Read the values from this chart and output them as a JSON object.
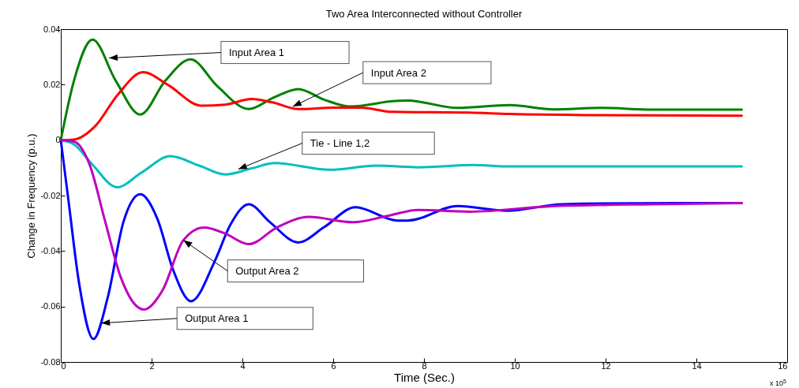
{
  "chart_data": {
    "type": "line",
    "title": "Two Area Interconnected without Controller",
    "xlabel": "Time (Sec.)",
    "ylabel": "Change in Frequency (p.u.)",
    "xlim": [
      0,
      16
    ],
    "xticks": [
      0,
      2,
      4,
      6,
      8,
      10,
      12,
      14,
      16
    ],
    "ylim": [
      -0.08,
      0.04
    ],
    "yticks": [
      -0.08,
      -0.06,
      -0.04,
      -0.02,
      0,
      0.02,
      0.04
    ],
    "grid": false,
    "legend": false,
    "marker": "none",
    "line_style": "solid",
    "series": [
      {
        "color": "#008000",
        "x": [
          0,
          0.29,
          0.7,
          1.21,
          1.75,
          2.3,
          2.86,
          3.45,
          4.14,
          4.71,
          5.23,
          5.8,
          6.38,
          7.36,
          7.64,
          8.74,
          9.89,
          10.86,
          11.9,
          13.05,
          15
        ],
        "values": [
          0,
          0.0214,
          0.0362,
          0.0214,
          0.0092,
          0.0214,
          0.0291,
          0.0194,
          0.0112,
          0.0155,
          0.0184,
          0.0146,
          0.0121,
          0.0141,
          0.0143,
          0.0116,
          0.0126,
          0.0111,
          0.0116,
          0.011,
          0.011
        ]
      },
      {
        "color": "#ff0000",
        "x": [
          0,
          0.29,
          0.75,
          1.26,
          1.81,
          2.36,
          3.1,
          3.62,
          4.2,
          4.66,
          5.23,
          6.03,
          6.61,
          7.3,
          9.0,
          9.89,
          11.9,
          15
        ],
        "values": [
          0,
          0.0002,
          0.0049,
          0.0165,
          0.0245,
          0.0199,
          0.0124,
          0.0128,
          0.0148,
          0.0136,
          0.0112,
          0.0117,
          0.0117,
          0.0102,
          0.0099,
          0.0094,
          0.009,
          0.0088
        ]
      },
      {
        "color": "#00bfbf",
        "x": [
          0,
          0.29,
          0.69,
          1.24,
          1.78,
          2.41,
          3.05,
          3.62,
          4.2,
          4.71,
          5.92,
          6.95,
          7.87,
          9.1,
          9.89,
          15
        ],
        "values": [
          0,
          -0.0015,
          -0.0087,
          -0.017,
          -0.0117,
          -0.0058,
          -0.0092,
          -0.0124,
          -0.0102,
          -0.0083,
          -0.0107,
          -0.0092,
          -0.0098,
          -0.009,
          -0.0095,
          -0.0095
        ]
      },
      {
        "color": "#0000ff",
        "x": [
          0,
          0.17,
          0.4,
          0.72,
          1.03,
          1.38,
          1.75,
          2.13,
          2.47,
          2.87,
          3.39,
          3.74,
          4.14,
          4.6,
          5.23,
          5.8,
          6.49,
          7.41,
          7.64,
          8.74,
          9.83,
          11.04,
          13.6,
          15
        ],
        "values": [
          0,
          -0.0219,
          -0.0513,
          -0.0717,
          -0.057,
          -0.0295,
          -0.0195,
          -0.0285,
          -0.0466,
          -0.0581,
          -0.0437,
          -0.0304,
          -0.0231,
          -0.0295,
          -0.0369,
          -0.0314,
          -0.0242,
          -0.029,
          -0.029,
          -0.0238,
          -0.0255,
          -0.0231,
          -0.0227,
          -0.0227
        ]
      },
      {
        "color": "#bf00bf",
        "x": [
          0,
          0.29,
          0.63,
          0.98,
          1.32,
          1.83,
          2.24,
          2.7,
          3.16,
          3.62,
          4.14,
          4.77,
          5.46,
          6.44,
          7.18,
          7.87,
          9.0,
          10.75,
          13.05,
          15
        ],
        "values": [
          0,
          -0.0005,
          -0.0086,
          -0.0295,
          -0.0494,
          -0.0611,
          -0.0542,
          -0.0361,
          -0.0315,
          -0.0337,
          -0.0375,
          -0.0314,
          -0.0277,
          -0.0296,
          -0.0274,
          -0.0252,
          -0.0258,
          -0.0239,
          -0.0231,
          -0.0227
        ]
      }
    ],
    "annotations": [
      {
        "text": "Input Area 1",
        "x": 1.06,
        "y": 0.0296
      },
      {
        "text": "Input Area 2",
        "x": 5.11,
        "y": 0.0121
      },
      {
        "text": "Tie - Line 1,2",
        "x": 3.91,
        "y": -0.0105
      },
      {
        "text": "Output Area 2",
        "x": 2.7,
        "y": -0.0361
      },
      {
        "text": "Output Area 1",
        "x": 0.89,
        "y": -0.066
      },
      "x 10$^{5}$"
    ]
  }
}
